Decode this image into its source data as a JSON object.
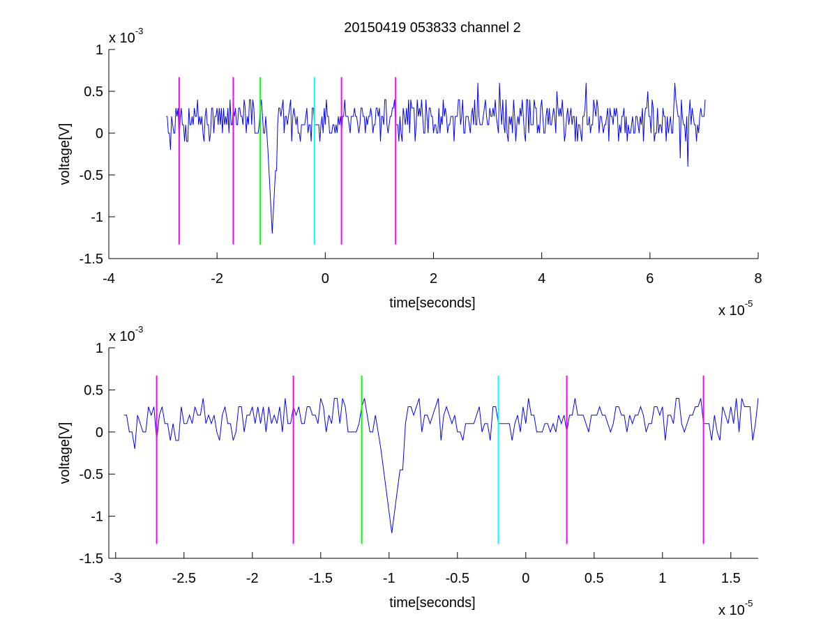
{
  "figure": {
    "title": "20150419 053833 channel 2"
  },
  "colors": {
    "signal": "#0000ff",
    "marker_magenta": "#ff00ff",
    "marker_green": "#00ff00",
    "marker_cyan": "#00ffff"
  },
  "chart_data": [
    {
      "type": "line",
      "title": "20150419 053833 channel 2",
      "xlabel": "time[seconds]",
      "ylabel": "voltage[V]",
      "x_exponent_label": "x 10",
      "x_exponent": "-5",
      "y_exponent_label": "x 10",
      "y_exponent": "-3",
      "xlim": [
        -4,
        8
      ],
      "ylim": [
        -1.5,
        1
      ],
      "xticks": [
        -4,
        -2,
        0,
        2,
        4,
        6,
        8
      ],
      "yticks": [
        -1.5,
        -1,
        -0.5,
        0,
        0.5,
        1
      ],
      "xtick_labels": [
        "-4",
        "-2",
        "0",
        "2",
        "4",
        "6",
        "8"
      ],
      "ytick_labels": [
        "-1.5",
        "-1",
        "-0.5",
        "0",
        "0.5",
        "1"
      ],
      "grid": false,
      "signal": {
        "x_start": -2.94,
        "x_end": 7.02,
        "dt": 0.02,
        "baseline_levels": [
          0,
          0.1,
          0.2,
          0.3,
          0.4
        ],
        "pulse": {
          "x_center": -0.98,
          "min": -1.2
        },
        "spikes": [
          {
            "x": 2.82,
            "y": 0.6
          },
          {
            "x": 3.22,
            "y": 0.6
          },
          {
            "x": 4.82,
            "y": 0.6
          },
          {
            "x": 6.46,
            "y": 0.6
          },
          {
            "x": 6.7,
            "y": -0.4
          },
          {
            "x": 6.56,
            "y": -0.3
          },
          {
            "x": 5.96,
            "y": 0.5
          },
          {
            "x": 4.28,
            "y": 0.5
          }
        ]
      },
      "markers": [
        {
          "x": -2.7,
          "color": "magenta",
          "y_range": [
            -1.33,
            0.67
          ]
        },
        {
          "x": -1.7,
          "color": "magenta",
          "y_range": [
            -1.33,
            0.67
          ]
        },
        {
          "x": -1.2,
          "color": "green",
          "y_range": [
            -1.33,
            0.67
          ]
        },
        {
          "x": -0.2,
          "color": "cyan",
          "y_range": [
            -1.33,
            0.67
          ]
        },
        {
          "x": 0.3,
          "color": "magenta",
          "y_range": [
            -1.33,
            0.67
          ]
        },
        {
          "x": 1.3,
          "color": "magenta",
          "y_range": [
            -1.33,
            0.67
          ]
        }
      ]
    },
    {
      "type": "line",
      "title": "",
      "xlabel": "time[seconds]",
      "ylabel": "voltage[V]",
      "x_exponent_label": "x 10",
      "x_exponent": "-5",
      "y_exponent_label": "x 10",
      "y_exponent": "-3",
      "xlim": [
        -3.05,
        1.7
      ],
      "ylim": [
        -1.5,
        1
      ],
      "xticks": [
        -3,
        -2.5,
        -2,
        -1.5,
        -1,
        -0.5,
        0,
        0.5,
        1,
        1.5
      ],
      "yticks": [
        -1.5,
        -1,
        -0.5,
        0,
        0.5,
        1
      ],
      "xtick_labels": [
        "-3",
        "-2.5",
        "-2",
        "-1.5",
        "-1",
        "-0.5",
        "0",
        "0.5",
        "1",
        "1.5"
      ],
      "ytick_labels": [
        "-1.5",
        "-1",
        "-0.5",
        "0",
        "0.5",
        "1"
      ],
      "grid": false,
      "signal": {
        "x_start": -2.94,
        "x_end": 1.7,
        "dt": 0.02,
        "baseline_levels": [
          0,
          0.1,
          0.2,
          0.3,
          0.4
        ],
        "pulse": {
          "x_center": -0.98,
          "min": -1.2
        }
      },
      "markers": [
        {
          "x": -2.7,
          "color": "magenta",
          "y_range": [
            -1.33,
            0.67
          ]
        },
        {
          "x": -1.7,
          "color": "magenta",
          "y_range": [
            -1.33,
            0.67
          ]
        },
        {
          "x": -1.2,
          "color": "green",
          "y_range": [
            -1.33,
            0.67
          ]
        },
        {
          "x": -0.2,
          "color": "cyan",
          "y_range": [
            -1.33,
            0.67
          ]
        },
        {
          "x": 0.3,
          "color": "magenta",
          "y_range": [
            -1.33,
            0.67
          ]
        },
        {
          "x": 1.3,
          "color": "magenta",
          "y_range": [
            -1.33,
            0.67
          ]
        }
      ]
    }
  ]
}
